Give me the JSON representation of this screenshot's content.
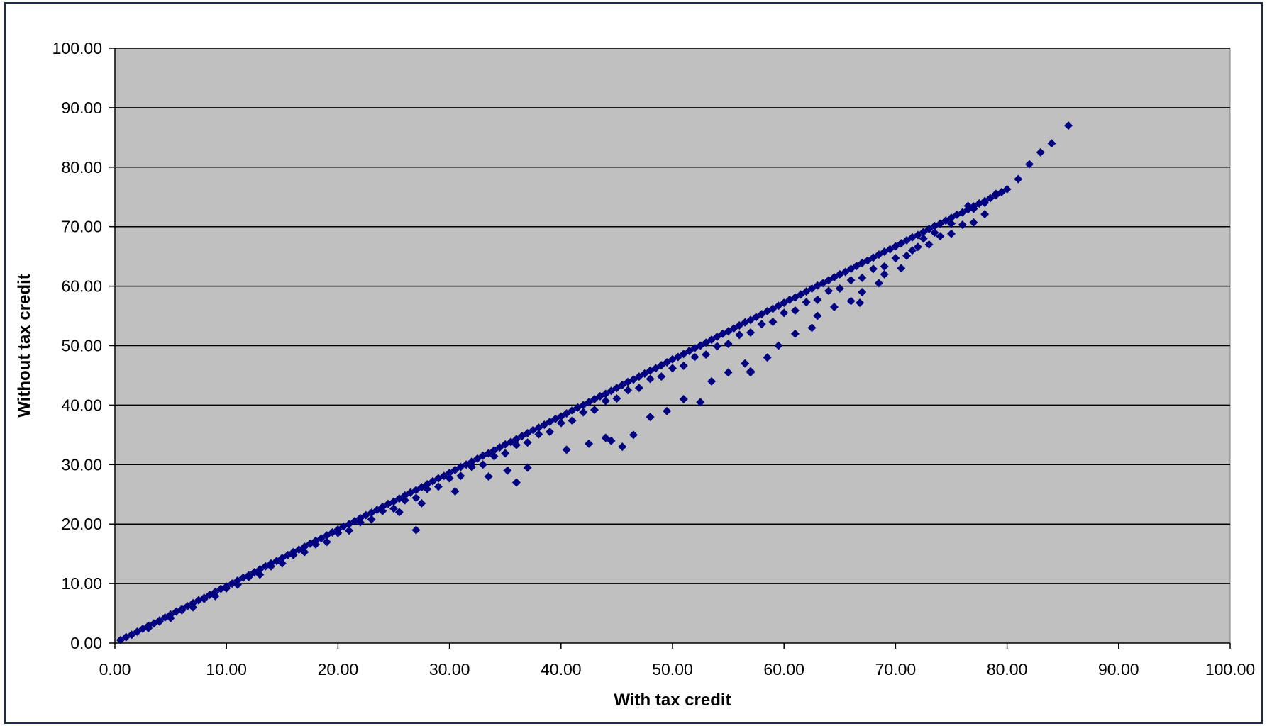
{
  "chart_data": {
    "type": "scatter",
    "title": "",
    "xlabel": "With tax credit",
    "ylabel": "Without tax credit",
    "xlim": [
      0,
      100
    ],
    "ylim": [
      0,
      100
    ],
    "x_ticks": [
      "0.00",
      "10.00",
      "20.00",
      "30.00",
      "40.00",
      "50.00",
      "60.00",
      "70.00",
      "80.00",
      "90.00",
      "100.00"
    ],
    "y_ticks": [
      "0.00",
      "10.00",
      "20.00",
      "30.00",
      "40.00",
      "50.00",
      "60.00",
      "70.00",
      "80.00",
      "90.00",
      "100.00"
    ],
    "grid": "horizontal",
    "legend": "none",
    "colors": {
      "plot_background": "#c0c0c0",
      "marker": "#000080",
      "gridline": "#000000"
    },
    "marker_shape": "diamond",
    "series": [
      {
        "points": [
          [
            0.5,
            0.5
          ],
          [
            1.0,
            1.0
          ],
          [
            1.5,
            1.4
          ],
          [
            2.0,
            1.9
          ],
          [
            2.5,
            2.4
          ],
          [
            3.0,
            2.9
          ],
          [
            3.5,
            3.3
          ],
          [
            4.0,
            3.8
          ],
          [
            4.5,
            4.3
          ],
          [
            5.0,
            4.8
          ],
          [
            5.5,
            5.3
          ],
          [
            6.0,
            5.7
          ],
          [
            6.5,
            6.2
          ],
          [
            7.0,
            6.7
          ],
          [
            7.5,
            7.2
          ],
          [
            8.0,
            7.6
          ],
          [
            8.5,
            8.1
          ],
          [
            9.0,
            8.6
          ],
          [
            9.5,
            9.1
          ],
          [
            10.0,
            9.5
          ],
          [
            10.5,
            10.0
          ],
          [
            11.0,
            10.5
          ],
          [
            11.5,
            11.0
          ],
          [
            12.0,
            11.4
          ],
          [
            12.5,
            11.9
          ],
          [
            13.0,
            12.4
          ],
          [
            13.5,
            12.9
          ],
          [
            14.0,
            13.4
          ],
          [
            14.5,
            13.8
          ],
          [
            15.0,
            14.3
          ],
          [
            15.5,
            14.8
          ],
          [
            16.0,
            15.3
          ],
          [
            16.5,
            15.7
          ],
          [
            17.0,
            16.2
          ],
          [
            17.5,
            16.7
          ],
          [
            18.0,
            17.2
          ],
          [
            18.5,
            17.6
          ],
          [
            19.0,
            18.1
          ],
          [
            19.5,
            18.6
          ],
          [
            20.0,
            19.1
          ],
          [
            20.5,
            19.6
          ],
          [
            21.0,
            20.0
          ],
          [
            21.5,
            20.5
          ],
          [
            22.0,
            21.0
          ],
          [
            22.5,
            21.5
          ],
          [
            23.0,
            21.9
          ],
          [
            23.5,
            22.4
          ],
          [
            24.0,
            22.9
          ],
          [
            24.5,
            23.4
          ],
          [
            25.0,
            23.8
          ],
          [
            25.5,
            24.3
          ],
          [
            26.0,
            24.8
          ],
          [
            26.5,
            25.3
          ],
          [
            27.0,
            25.7
          ],
          [
            27.5,
            26.2
          ],
          [
            28.0,
            26.7
          ],
          [
            28.5,
            27.2
          ],
          [
            29.0,
            27.7
          ],
          [
            29.5,
            28.1
          ],
          [
            30.0,
            28.6
          ],
          [
            30.5,
            29.1
          ],
          [
            31.0,
            29.6
          ],
          [
            31.5,
            30.0
          ],
          [
            32.0,
            30.5
          ],
          [
            32.5,
            31.0
          ],
          [
            33.0,
            31.5
          ],
          [
            33.5,
            31.9
          ],
          [
            34.0,
            32.4
          ],
          [
            34.5,
            32.9
          ],
          [
            35.0,
            33.4
          ],
          [
            35.5,
            33.8
          ],
          [
            36.0,
            34.3
          ],
          [
            36.5,
            34.8
          ],
          [
            37.0,
            35.3
          ],
          [
            37.5,
            35.8
          ],
          [
            38.0,
            36.2
          ],
          [
            38.5,
            36.7
          ],
          [
            39.0,
            37.2
          ],
          [
            39.5,
            37.7
          ],
          [
            40.0,
            38.1
          ],
          [
            40.5,
            38.6
          ],
          [
            41.0,
            39.1
          ],
          [
            41.5,
            39.6
          ],
          [
            42.0,
            40.0
          ],
          [
            42.5,
            40.5
          ],
          [
            43.0,
            41.0
          ],
          [
            43.5,
            41.5
          ],
          [
            44.0,
            41.9
          ],
          [
            44.5,
            42.4
          ],
          [
            45.0,
            42.9
          ],
          [
            45.5,
            43.4
          ],
          [
            46.0,
            43.9
          ],
          [
            46.5,
            44.3
          ],
          [
            47.0,
            44.8
          ],
          [
            47.5,
            45.3
          ],
          [
            48.0,
            45.8
          ],
          [
            48.5,
            46.2
          ],
          [
            49.0,
            46.7
          ],
          [
            49.5,
            47.2
          ],
          [
            50.0,
            47.7
          ],
          [
            50.5,
            48.1
          ],
          [
            51.0,
            48.6
          ],
          [
            51.5,
            49.1
          ],
          [
            52.0,
            49.6
          ],
          [
            52.5,
            50.0
          ],
          [
            53.0,
            50.5
          ],
          [
            53.5,
            51.0
          ],
          [
            54.0,
            51.5
          ],
          [
            54.5,
            52.0
          ],
          [
            55.0,
            52.4
          ],
          [
            55.5,
            52.9
          ],
          [
            56.0,
            53.4
          ],
          [
            56.5,
            53.9
          ],
          [
            57.0,
            54.3
          ],
          [
            57.5,
            54.8
          ],
          [
            58.0,
            55.3
          ],
          [
            58.5,
            55.8
          ],
          [
            59.0,
            56.2
          ],
          [
            59.5,
            56.7
          ],
          [
            60.0,
            57.2
          ],
          [
            60.5,
            57.7
          ],
          [
            61.0,
            58.1
          ],
          [
            61.5,
            58.6
          ],
          [
            62.0,
            59.1
          ],
          [
            62.5,
            59.6
          ],
          [
            63.0,
            60.1
          ],
          [
            63.5,
            60.5
          ],
          [
            64.0,
            61.0
          ],
          [
            64.5,
            61.5
          ],
          [
            65.0,
            62.0
          ],
          [
            65.5,
            62.4
          ],
          [
            66.0,
            62.9
          ],
          [
            66.5,
            63.4
          ],
          [
            67.0,
            63.9
          ],
          [
            67.5,
            64.3
          ],
          [
            68.0,
            64.8
          ],
          [
            68.5,
            65.3
          ],
          [
            69.0,
            65.8
          ],
          [
            69.5,
            66.2
          ],
          [
            70.0,
            66.7
          ],
          [
            70.5,
            67.2
          ],
          [
            71.0,
            67.7
          ],
          [
            71.5,
            68.2
          ],
          [
            72.0,
            68.6
          ],
          [
            72.5,
            69.1
          ],
          [
            73.0,
            69.6
          ],
          [
            73.5,
            70.1
          ],
          [
            74.0,
            70.5
          ],
          [
            74.5,
            71.0
          ],
          [
            75.0,
            71.5
          ],
          [
            75.5,
            72.0
          ],
          [
            76.0,
            72.4
          ],
          [
            76.5,
            72.9
          ],
          [
            77.0,
            73.4
          ],
          [
            77.5,
            73.9
          ],
          [
            78.0,
            74.3
          ],
          [
            78.5,
            74.8
          ],
          [
            79.0,
            75.3
          ],
          [
            79.5,
            75.8
          ],
          [
            80.0,
            76.3
          ],
          [
            3,
            2.5
          ],
          [
            5,
            4.2
          ],
          [
            7,
            6.0
          ],
          [
            9,
            7.9
          ],
          [
            11,
            9.8
          ],
          [
            13,
            11.5
          ],
          [
            15,
            13.4
          ],
          [
            17,
            15.3
          ],
          [
            19,
            17.0
          ],
          [
            21,
            18.9
          ],
          [
            23,
            20.8
          ],
          [
            25,
            22.6
          ],
          [
            27,
            24.4
          ],
          [
            29,
            26.3
          ],
          [
            31,
            28.1
          ],
          [
            33,
            30.0
          ],
          [
            35,
            31.9
          ],
          [
            37,
            33.7
          ],
          [
            39,
            35.5
          ],
          [
            41,
            37.4
          ],
          [
            43,
            39.2
          ],
          [
            45,
            41.1
          ],
          [
            47,
            42.9
          ],
          [
            49,
            44.8
          ],
          [
            51,
            46.6
          ],
          [
            53,
            48.5
          ],
          [
            55,
            50.3
          ],
          [
            57,
            52.2
          ],
          [
            59,
            54.0
          ],
          [
            61,
            55.9
          ],
          [
            63,
            57.7
          ],
          [
            65,
            59.6
          ],
          [
            67,
            61.4
          ],
          [
            69,
            63.3
          ],
          [
            71,
            65.1
          ],
          [
            73,
            67.0
          ],
          [
            75,
            68.8
          ],
          [
            77,
            70.7
          ],
          [
            4,
            3.6
          ],
          [
            6,
            5.5
          ],
          [
            8,
            7.4
          ],
          [
            10,
            9.2
          ],
          [
            12,
            11.1
          ],
          [
            14,
            12.9
          ],
          [
            16,
            14.8
          ],
          [
            18,
            16.6
          ],
          [
            20,
            18.5
          ],
          [
            22,
            20.3
          ],
          [
            24,
            22.2
          ],
          [
            26,
            24.0
          ],
          [
            28,
            25.9
          ],
          [
            30,
            27.7
          ],
          [
            32,
            29.6
          ],
          [
            34,
            31.4
          ],
          [
            36,
            33.3
          ],
          [
            38,
            35.1
          ],
          [
            40,
            37.0
          ],
          [
            42,
            38.8
          ],
          [
            44,
            40.7
          ],
          [
            46,
            42.5
          ],
          [
            48,
            44.4
          ],
          [
            50,
            46.2
          ],
          [
            52,
            48.1
          ],
          [
            54,
            49.9
          ],
          [
            56,
            51.8
          ],
          [
            58,
            53.6
          ],
          [
            60,
            55.5
          ],
          [
            62,
            57.3
          ],
          [
            64,
            59.2
          ],
          [
            66,
            61.0
          ],
          [
            68,
            62.9
          ],
          [
            70,
            64.7
          ],
          [
            72,
            66.6
          ],
          [
            74,
            68.4
          ],
          [
            76,
            70.3
          ],
          [
            78,
            72.1
          ],
          [
            25.5,
            22.0
          ],
          [
            27.5,
            23.5
          ],
          [
            30.5,
            25.5
          ],
          [
            33.5,
            28.0
          ],
          [
            35.2,
            29.0
          ],
          [
            37.0,
            29.5
          ],
          [
            40.5,
            32.5
          ],
          [
            42.5,
            33.5
          ],
          [
            44.0,
            34.5
          ],
          [
            46.5,
            35.0
          ],
          [
            48.0,
            38.0
          ],
          [
            49.5,
            39.0
          ],
          [
            51.0,
            41.0
          ],
          [
            52.5,
            40.5
          ],
          [
            53.5,
            44.0
          ],
          [
            55.0,
            45.5
          ],
          [
            56.5,
            47.0
          ],
          [
            57.0,
            45.5
          ],
          [
            58.5,
            48.0
          ],
          [
            59.5,
            50.0
          ],
          [
            61.0,
            52.0
          ],
          [
            62.5,
            53.0
          ],
          [
            63.0,
            55.0
          ],
          [
            64.5,
            56.5
          ],
          [
            66.0,
            57.5
          ],
          [
            67.0,
            59.0
          ],
          [
            68.5,
            60.5
          ],
          [
            69.0,
            62.0
          ],
          [
            70.5,
            63.0
          ],
          [
            71.5,
            66.0
          ],
          [
            72.5,
            68.0
          ],
          [
            73.5,
            69.0
          ],
          [
            75.0,
            70.5
          ],
          [
            76.5,
            73.5
          ],
          [
            77.0,
            73.0
          ],
          [
            78.0,
            74.0
          ],
          [
            79.0,
            75.5
          ],
          [
            81.0,
            78.0
          ],
          [
            82.0,
            80.5
          ],
          [
            83.0,
            82.5
          ],
          [
            84.0,
            84.0
          ],
          [
            85.5,
            87.0
          ],
          [
            36.0,
            27.0
          ],
          [
            27.0,
            19.0
          ],
          [
            44.5,
            34.0
          ],
          [
            66.8,
            57.2
          ],
          [
            57.0,
            45.7
          ],
          [
            45.5,
            33.0
          ]
        ]
      }
    ]
  }
}
